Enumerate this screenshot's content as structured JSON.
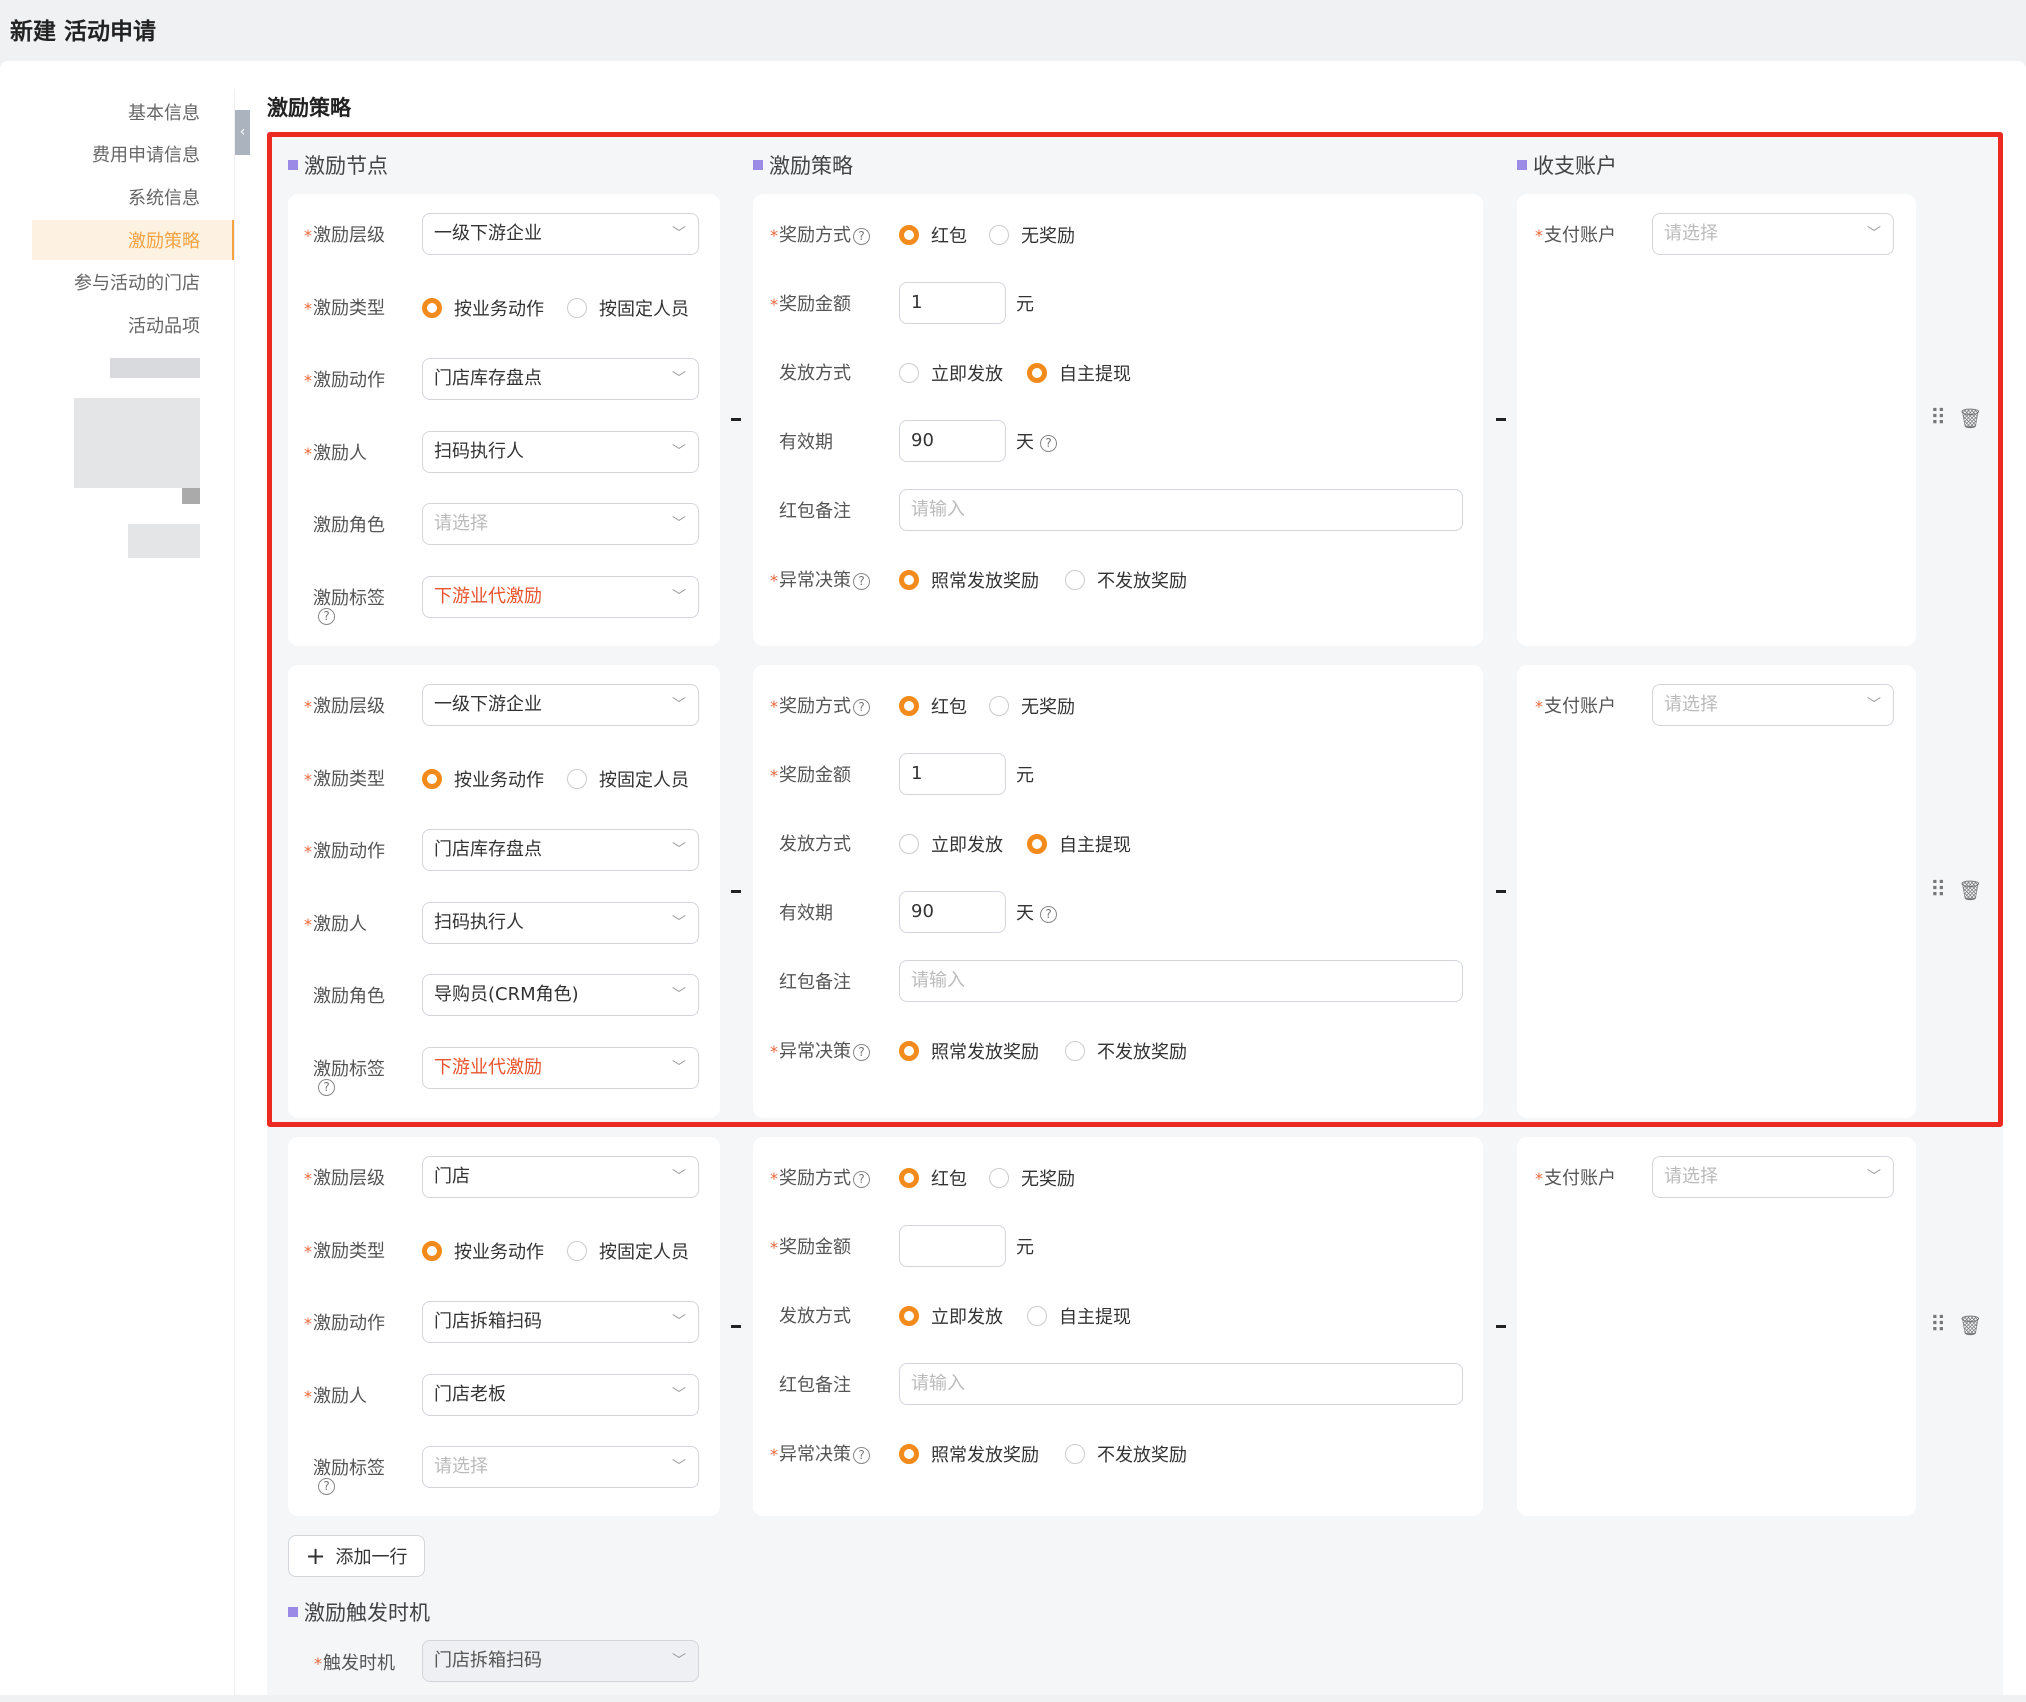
{
  "header": {
    "title": "新建 活动申请"
  },
  "sidebar": {
    "items": [
      {
        "label": "基本信息",
        "active": false
      },
      {
        "label": "费用申请信息",
        "active": false
      },
      {
        "label": "系统信息",
        "active": false
      },
      {
        "label": "激励策略",
        "active": true
      },
      {
        "label": "参与活动的门店",
        "active": false
      },
      {
        "label": "活动品项",
        "active": false
      }
    ]
  },
  "colors": {
    "accent": "#f28b1c",
    "active_nav_text": "#f4a340",
    "tag_text": "#e8542d",
    "section_marker": "#9b8be6",
    "annotation_box": "#ec2a22"
  },
  "section": {
    "title": "激励策略"
  },
  "columns": {
    "node": "激励节点",
    "strategy": "激励策略",
    "account": "收支账户"
  },
  "rows": [
    {
      "node": [
        {
          "label": "激励层级",
          "required": true,
          "type": "select",
          "value": "一级下游企业"
        },
        {
          "label": "激励类型",
          "required": true,
          "type": "radio",
          "options": [
            "按业务动作",
            "按固定人员"
          ],
          "selected": 0
        },
        {
          "label": "激励动作",
          "required": true,
          "type": "select",
          "value": "门店库存盘点"
        },
        {
          "label": "激励人",
          "required": true,
          "type": "select",
          "value": "扫码执行人"
        },
        {
          "label": "激励角色",
          "required": false,
          "type": "select",
          "placeholder": "请选择"
        },
        {
          "label": "激励标签",
          "required": false,
          "help": true,
          "type": "select",
          "value": "下游业代激励",
          "highlight": true
        }
      ],
      "strategy": [
        {
          "label": "奖励方式",
          "required": true,
          "help": true,
          "type": "radio",
          "options": [
            "红包",
            "无奖励"
          ],
          "selected": 0
        },
        {
          "label": "奖励金额",
          "required": true,
          "type": "input",
          "value": "1",
          "suffix": "元"
        },
        {
          "label": "发放方式",
          "required": false,
          "type": "radio",
          "options": [
            "立即发放",
            "自主提现"
          ],
          "selected": 1
        },
        {
          "label": "有效期",
          "required": false,
          "type": "input",
          "value": "90",
          "suffix": "天",
          "suffix_help": true
        },
        {
          "label": "红包备注",
          "required": false,
          "type": "wide",
          "placeholder": "请输入"
        },
        {
          "label": "异常决策",
          "required": true,
          "help": true,
          "type": "radio",
          "options": [
            "照常发放奖励",
            "不发放奖励"
          ],
          "selected": 0
        }
      ],
      "account": {
        "label": "支付账户",
        "required": true,
        "placeholder": "请选择"
      }
    },
    {
      "node": [
        {
          "label": "激励层级",
          "required": true,
          "type": "select",
          "value": "一级下游企业"
        },
        {
          "label": "激励类型",
          "required": true,
          "type": "radio",
          "options": [
            "按业务动作",
            "按固定人员"
          ],
          "selected": 0
        },
        {
          "label": "激励动作",
          "required": true,
          "type": "select",
          "value": "门店库存盘点"
        },
        {
          "label": "激励人",
          "required": true,
          "type": "select",
          "value": "扫码执行人"
        },
        {
          "label": "激励角色",
          "required": false,
          "type": "select",
          "value": "导购员(CRM角色)"
        },
        {
          "label": "激励标签",
          "required": false,
          "help": true,
          "type": "select",
          "value": "下游业代激励",
          "highlight": true
        }
      ],
      "strategy": [
        {
          "label": "奖励方式",
          "required": true,
          "help": true,
          "type": "radio",
          "options": [
            "红包",
            "无奖励"
          ],
          "selected": 0
        },
        {
          "label": "奖励金额",
          "required": true,
          "type": "input",
          "value": "1",
          "suffix": "元"
        },
        {
          "label": "发放方式",
          "required": false,
          "type": "radio",
          "options": [
            "立即发放",
            "自主提现"
          ],
          "selected": 1
        },
        {
          "label": "有效期",
          "required": false,
          "type": "input",
          "value": "90",
          "suffix": "天",
          "suffix_help": true
        },
        {
          "label": "红包备注",
          "required": false,
          "type": "wide",
          "placeholder": "请输入"
        },
        {
          "label": "异常决策",
          "required": true,
          "help": true,
          "type": "radio",
          "options": [
            "照常发放奖励",
            "不发放奖励"
          ],
          "selected": 0
        }
      ],
      "account": {
        "label": "支付账户",
        "required": true,
        "placeholder": "请选择"
      }
    },
    {
      "node": [
        {
          "label": "激励层级",
          "required": true,
          "type": "select",
          "value": "门店"
        },
        {
          "label": "激励类型",
          "required": true,
          "type": "radio",
          "options": [
            "按业务动作",
            "按固定人员"
          ],
          "selected": 0
        },
        {
          "label": "激励动作",
          "required": true,
          "type": "select",
          "value": "门店拆箱扫码"
        },
        {
          "label": "激励人",
          "required": true,
          "type": "select",
          "value": "门店老板"
        },
        {
          "label": "激励标签",
          "required": false,
          "help": true,
          "type": "select",
          "placeholder": "请选择"
        }
      ],
      "strategy": [
        {
          "label": "奖励方式",
          "required": true,
          "help": true,
          "type": "radio",
          "options": [
            "红包",
            "无奖励"
          ],
          "selected": 0
        },
        {
          "label": "奖励金额",
          "required": true,
          "type": "input",
          "value": "",
          "suffix": "元"
        },
        {
          "label": "发放方式",
          "required": false,
          "type": "radio",
          "options": [
            "立即发放",
            "自主提现"
          ],
          "selected": 0
        },
        {
          "label": "红包备注",
          "required": false,
          "type": "wide",
          "placeholder": "请输入"
        },
        {
          "label": "异常决策",
          "required": true,
          "help": true,
          "type": "radio",
          "options": [
            "照常发放奖励",
            "不发放奖励"
          ],
          "selected": 0
        }
      ],
      "account": {
        "label": "支付账户",
        "required": true,
        "placeholder": "请选择"
      }
    }
  ],
  "add_row": {
    "label": "添加一行",
    "icon": "plus-icon"
  },
  "trigger": {
    "title": "激励触发时机",
    "label": "触发时机",
    "required": true,
    "value": "门店拆箱扫码",
    "disabled": true
  },
  "symbols": {
    "star": "*",
    "help": "?",
    "chevron": "﹀",
    "plus": "+",
    "dash": "-",
    "collapse": "‹",
    "drag": "⠿",
    "trash": "🗑"
  }
}
